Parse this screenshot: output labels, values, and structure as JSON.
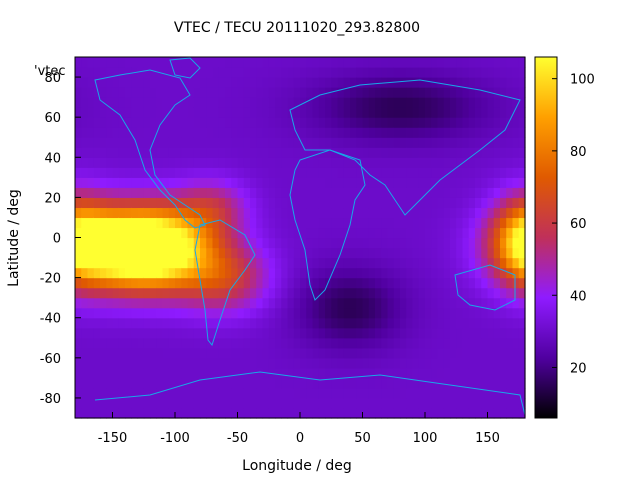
{
  "chart_data": {
    "type": "heatmap",
    "title": "VTEC / TECU 20111020_293.82800",
    "key_title": "'vtec",
    "xlabel": "Longitude / deg",
    "ylabel": "Latitude / deg",
    "xlim": [
      -180,
      180
    ],
    "ylim": [
      -90,
      90
    ],
    "xticks": [
      -150,
      -100,
      -50,
      0,
      50,
      100,
      150
    ],
    "yticks": [
      -80,
      -60,
      -40,
      -20,
      0,
      20,
      40,
      60,
      80
    ],
    "colorbar": {
      "range": [
        6,
        106
      ],
      "ticks": [
        20,
        40,
        60,
        80,
        100
      ],
      "palette": [
        "#000000",
        "#5000a0",
        "#8f1bff",
        "#c0305a",
        "#e05a00",
        "#ffa000",
        "#ffff30"
      ]
    },
    "grid_step_deg": 5,
    "sources": [
      {
        "lon": -150,
        "lat": -5,
        "peak": 72,
        "sigma_lon": 35,
        "sigma_lat": 14
      },
      {
        "lon": -110,
        "lat": -5,
        "peak": 68,
        "sigma_lon": 30,
        "sigma_lat": 14
      },
      {
        "lon": -60,
        "lat": -20,
        "peak": 30,
        "sigma_lon": 25,
        "sigma_lat": 12
      },
      {
        "lon": -70,
        "lat": 15,
        "peak": 22,
        "sigma_lon": 20,
        "sigma_lat": 10
      },
      {
        "lon": 180,
        "lat": 0,
        "peak": 40,
        "sigma_lon": 18,
        "sigma_lat": 15
      },
      {
        "lon": 80,
        "lat": 65,
        "peak": -15,
        "sigma_lon": 50,
        "sigma_lat": 12
      },
      {
        "lon": 40,
        "lat": -35,
        "peak": -15,
        "sigma_lon": 30,
        "sigma_lat": 14
      }
    ],
    "background": 30
  }
}
